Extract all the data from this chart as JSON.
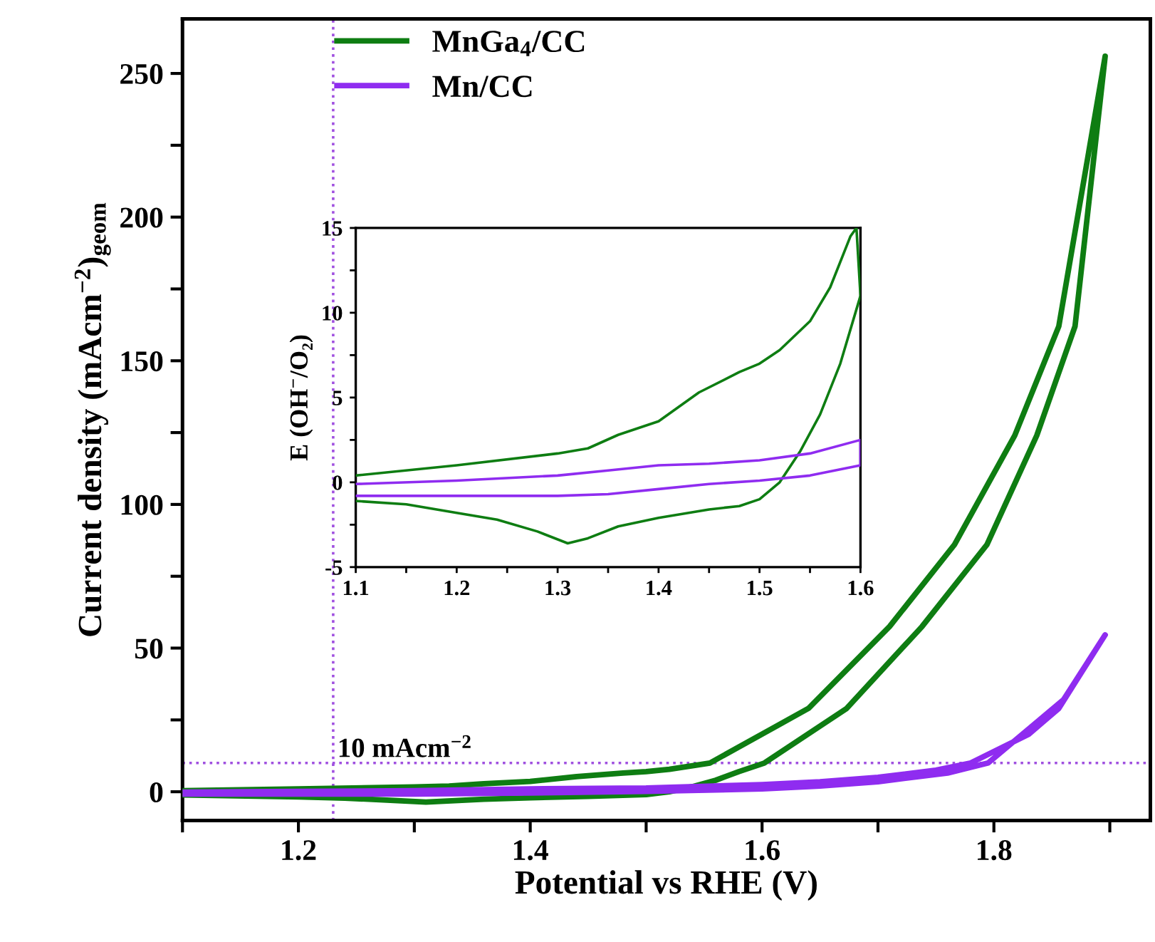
{
  "chart_data": [
    {
      "type": "line",
      "xlabel": "Potential vs RHE (V)",
      "ylabel": "Current density (mAcm$^{−2}$)$_{geom}$",
      "xlim": [
        1.1,
        1.935
      ],
      "ylim": [
        -10,
        269
      ],
      "xticks": [
        {
          "value": 1.1,
          "label": null
        },
        1.2,
        {
          "value": 1.3,
          "label": null
        },
        1.4,
        {
          "value": 1.5,
          "label": null
        },
        1.6,
        {
          "value": 1.7,
          "label": null
        },
        1.8,
        {
          "value": 1.9,
          "label": null
        }
      ],
      "yticks": [
        0,
        {
          "value": 25,
          "label": null
        },
        50,
        {
          "value": 75,
          "label": null
        },
        100,
        {
          "value": 125,
          "label": null
        },
        150,
        {
          "value": 175,
          "label": null
        },
        200,
        {
          "value": 225,
          "label": null
        },
        250
      ],
      "legend": "top left",
      "grid": false,
      "marker": "none",
      "line_style": "solid",
      "ref_lines": [
        {
          "axis": "x",
          "value": 1.23,
          "label": null,
          "color": "#a050e0",
          "line_style": "dotted"
        },
        {
          "axis": "y",
          "value": 10,
          "label": "10 mAcm$^{−2}$",
          "color": "#a050e0",
          "line_style": "dotted"
        }
      ],
      "series": [
        {
          "name": "MnGa$_{4}$/CC",
          "color": "#0e7d12",
          "x": [
            1.1,
            1.2,
            1.3,
            1.33,
            1.36,
            1.4,
            1.44,
            1.48,
            1.5,
            1.52,
            1.555,
            1.64,
            1.71,
            1.766,
            1.818,
            1.856,
            1.896,
            1.87,
            1.837,
            1.794,
            1.738,
            1.673,
            1.602,
            1.58,
            1.56,
            1.54,
            1.52,
            1.5,
            1.45,
            1.4,
            1.36,
            1.31,
            1.24,
            1.2,
            1.1
          ],
          "values": [
            0.4,
            1.0,
            1.7,
            2.0,
            2.8,
            3.6,
            5.3,
            6.5,
            7.0,
            7.8,
            10,
            29,
            57.5,
            86,
            124,
            162,
            256,
            162,
            124,
            86,
            57.5,
            29,
            10,
            7,
            4,
            1.8,
            0,
            -1.0,
            -1.6,
            -2.1,
            -2.6,
            -3.6,
            -2.2,
            -1.8,
            -1.1
          ]
        },
        {
          "name": "Mn/CC",
          "color": "#8f2cf0",
          "x": [
            1.1,
            1.2,
            1.3,
            1.4,
            1.5,
            1.6,
            1.65,
            1.7,
            1.75,
            1.78,
            1.83,
            1.856,
            1.896,
            1.86,
            1.795,
            1.76,
            1.7,
            1.65,
            1.6,
            1.5,
            1.4,
            1.3,
            1.2,
            1.1
          ],
          "values": [
            -0.1,
            0.1,
            0.4,
            1.0,
            1.3,
            2.5,
            3.5,
            5,
            7.5,
            10,
            20,
            29,
            54.6,
            32,
            10,
            6.5,
            3.5,
            2,
            1.0,
            0.1,
            -0.4,
            -0.8,
            -0.8,
            -0.8
          ]
        }
      ]
    },
    {
      "type": "line",
      "ylabel": "E (OH$^{−}$/O₂)",
      "xlim": [
        1.1,
        1.6
      ],
      "ylim": [
        -5,
        15
      ],
      "xticks": [
        1.1,
        {
          "value": 1.15,
          "label": null
        },
        1.2,
        {
          "value": 1.25,
          "label": null
        },
        1.3,
        {
          "value": 1.35,
          "label": null
        },
        1.4,
        {
          "value": 1.45,
          "label": null
        },
        1.5,
        {
          "value": 1.55,
          "label": null
        },
        1.6
      ],
      "yticks": [
        -5,
        {
          "value": -2.5,
          "label": null
        },
        0,
        {
          "value": 2.5,
          "label": null
        },
        5,
        {
          "value": 7.5,
          "label": null
        },
        10,
        {
          "value": 12.5,
          "label": null
        },
        15
      ],
      "grid": false,
      "marker": "none",
      "line_style": "solid",
      "series": [
        {
          "color": "#0e7d12",
          "x": [
            1.1,
            1.2,
            1.3,
            1.33,
            1.36,
            1.4,
            1.44,
            1.48,
            1.5,
            1.52,
            1.55,
            1.57,
            1.59,
            1.596,
            1.6,
            1.58,
            1.56,
            1.54,
            1.52,
            1.5,
            1.48,
            1.45,
            1.4,
            1.36,
            1.33,
            1.31,
            1.28,
            1.24,
            1.2,
            1.15,
            1.1
          ],
          "values": [
            0.4,
            1.0,
            1.7,
            2.0,
            2.8,
            3.6,
            5.3,
            6.5,
            7.0,
            7.8,
            9.5,
            11.5,
            14.5,
            15,
            11,
            7,
            4.0,
            1.8,
            0,
            -1.0,
            -1.4,
            -1.6,
            -2.1,
            -2.6,
            -3.3,
            -3.6,
            -2.9,
            -2.2,
            -1.8,
            -1.3,
            -1.1
          ]
        },
        {
          "color": "#8f2cf0",
          "x": [
            1.1,
            1.2,
            1.3,
            1.35,
            1.4,
            1.45,
            1.5,
            1.55,
            1.6,
            1.6,
            1.55,
            1.5,
            1.45,
            1.4,
            1.35,
            1.3,
            1.2,
            1.1
          ],
          "values": [
            -0.1,
            0.1,
            0.4,
            0.7,
            1.0,
            1.1,
            1.3,
            1.7,
            2.5,
            1.0,
            0.4,
            0.1,
            -0.1,
            -0.4,
            -0.7,
            -0.8,
            -0.8,
            -0.8
          ]
        }
      ]
    }
  ]
}
